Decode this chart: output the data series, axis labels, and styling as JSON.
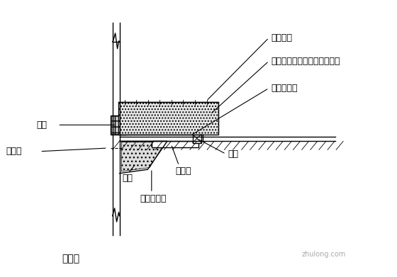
{
  "title": "剖面图",
  "bg_color": "#ffffff",
  "labels": {
    "bagged_cement": "袋装水泥",
    "sealing_material": "密闭材料（混凝土或双液浆）",
    "second_dam": "第二道围堰",
    "cover_plate": "盖板",
    "valve": "阀门",
    "leakage_point": "漏水点",
    "crushed_stone": "碎石",
    "guide_pipe": "导流管",
    "first_dam": "第一道围堰"
  },
  "line_color": "#000000",
  "hatch_color": "#555555",
  "font_size": 9,
  "title_font_size": 10
}
